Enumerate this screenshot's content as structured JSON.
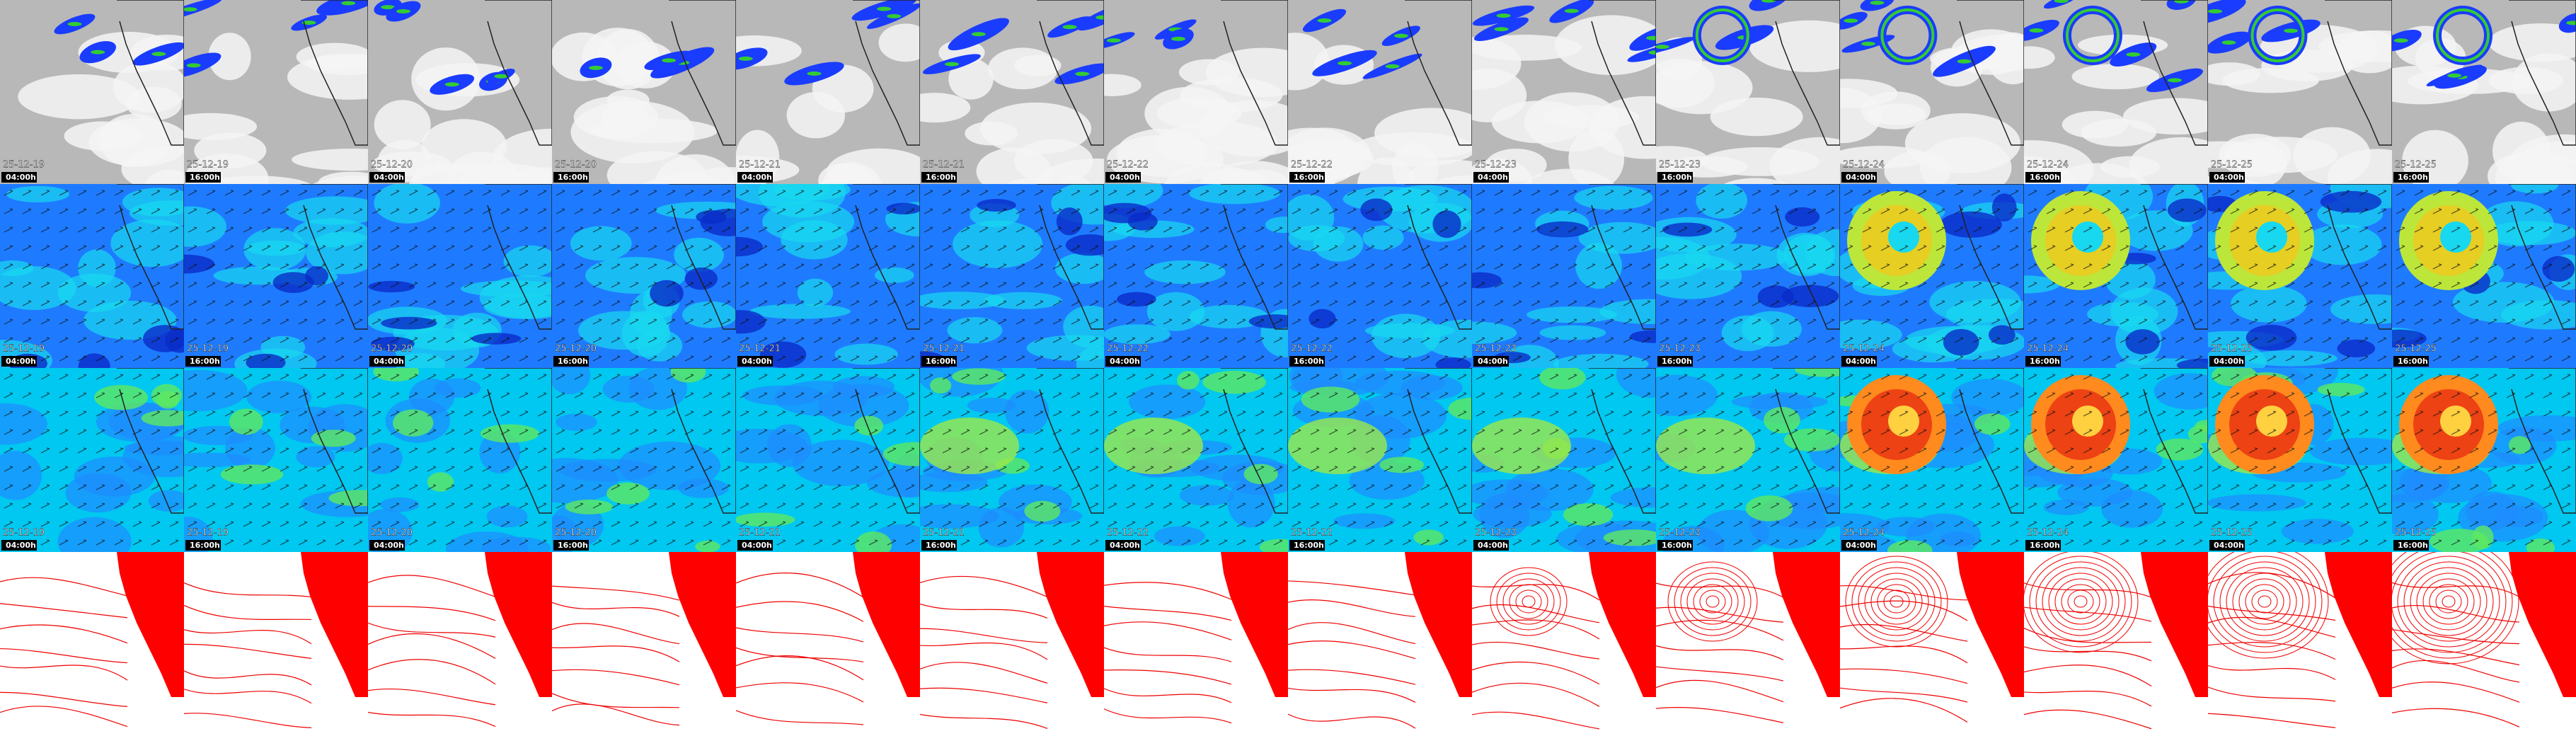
{
  "tiles": {
    "dates": [
      "25-12-19",
      "25-12-19",
      "25-12-20",
      "25-12-20",
      "25-12-21",
      "25-12-21",
      "25-12-22",
      "25-12-22",
      "25-12-23",
      "25-12-23",
      "25-12-24",
      "25-12-24",
      "25-12-25",
      "25-12-25"
    ],
    "times": [
      "04:00h",
      "16:00h",
      "04:00h",
      "16:00h",
      "04:00h",
      "16:00h",
      "04:00h",
      "16:00h",
      "04:00h",
      "16:00h",
      "04:00h",
      "16:00h",
      "04:00h",
      "16:00h"
    ]
  }
}
